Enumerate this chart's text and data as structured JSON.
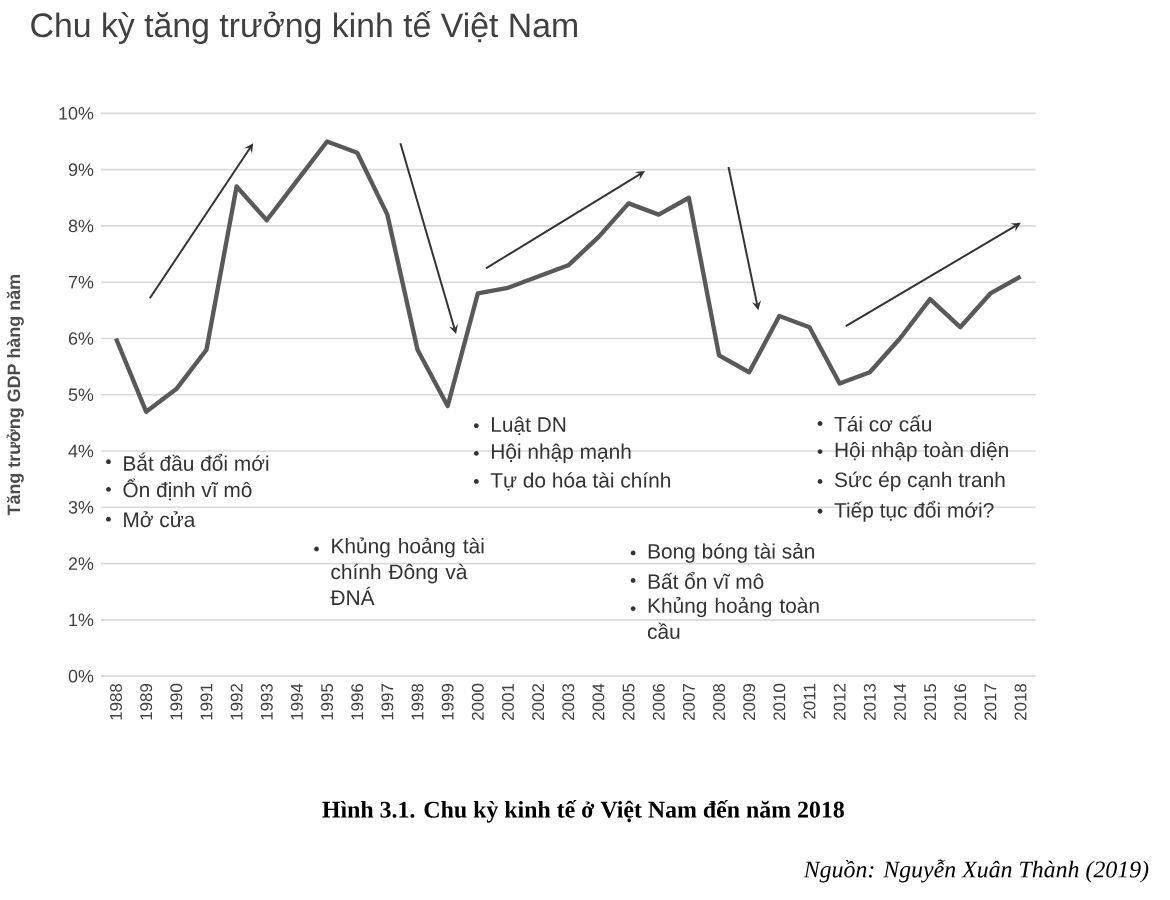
{
  "chart_data": {
    "type": "line",
    "title": "Chu kỳ tăng trưởng kinh tế Việt Nam",
    "ylabel": "Tăng trưởng GDP hàng năm",
    "categories": [
      "1988",
      "1989",
      "1990",
      "1991",
      "1992",
      "1993",
      "1994",
      "1995",
      "1996",
      "1997",
      "1998",
      "1999",
      "2000",
      "2001",
      "2002",
      "2003",
      "2004",
      "2005",
      "2006",
      "2007",
      "2008",
      "2009",
      "2010",
      "2011",
      "2012",
      "2013",
      "2014",
      "2015",
      "2016",
      "2017",
      "2018"
    ],
    "values": [
      6.0,
      4.7,
      5.1,
      5.8,
      8.7,
      8.1,
      8.8,
      9.5,
      9.3,
      8.2,
      5.8,
      4.8,
      6.8,
      6.9,
      7.1,
      7.3,
      7.8,
      8.4,
      8.2,
      8.5,
      5.7,
      5.4,
      6.4,
      6.2,
      5.2,
      5.4,
      6.0,
      6.7,
      6.2,
      6.8,
      7.1
    ],
    "color": "#595959",
    "ylim": [
      0,
      10
    ],
    "yticks": [
      {
        "value": 0,
        "label": "0%"
      },
      {
        "value": 1,
        "label": "1%"
      },
      {
        "value": 2,
        "label": "2%"
      },
      {
        "value": 3,
        "label": "3%"
      },
      {
        "value": 4,
        "label": "4%"
      },
      {
        "value": 5,
        "label": "5%"
      },
      {
        "value": 6,
        "label": "6%"
      },
      {
        "value": 7,
        "label": "7%"
      },
      {
        "value": 8,
        "label": "8%"
      },
      {
        "value": 9,
        "label": "9%"
      },
      {
        "value": 10,
        "label": "10%"
      }
    ],
    "grid": "y",
    "annotations": [
      "Bắt đầu đổi mới",
      "Ổn định vĩ mô",
      "Mở cửa",
      "Khủng hoảng tài chính Đông và ĐNÁ",
      "Luật DN",
      "Hội nhập mạnh",
      "Tự do hóa tài chính",
      "Bong bóng tài sản",
      "Bất ổn vĩ mô",
      "Khủng hoảng toàn cầu",
      "Tái cơ cấu",
      "Hội nhập toàn diện",
      "Sức ép cạnh tranh",
      "Tiếp tục đổi mới?",
      "Hình 3.1. Chu kỳ kinh tế ở Việt Nam đến năm 2018",
      "Nguồn: Nguyễn Xuân Thành (2019)"
    ]
  }
}
